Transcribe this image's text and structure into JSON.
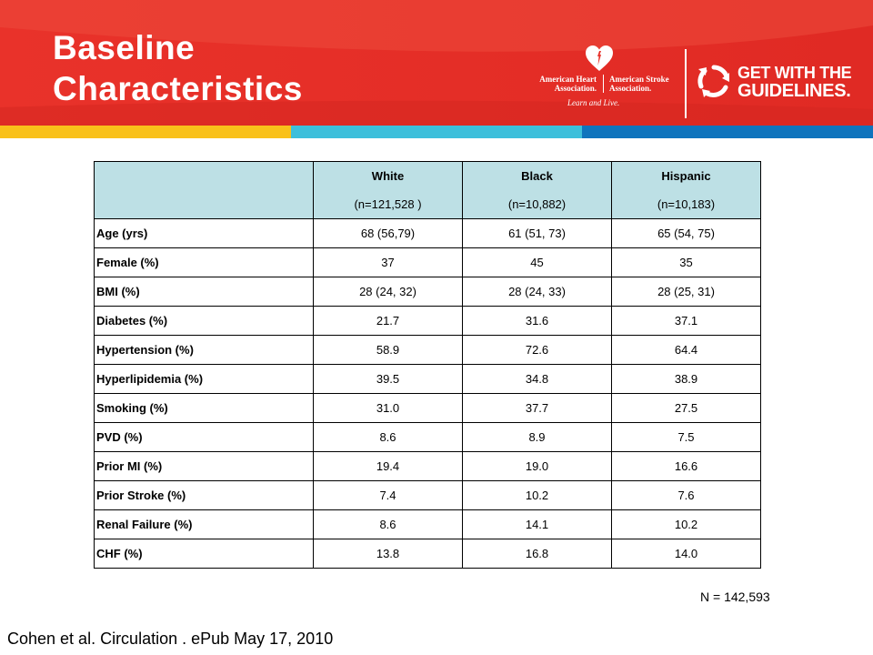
{
  "slide": {
    "title_line1": "Baseline",
    "title_line2": "Characteristics"
  },
  "branding": {
    "aha_left": "American Heart\nAssociation.",
    "aha_right": "American Stroke\nAssociation.",
    "aha_tagline": "Learn and Live.",
    "gwtg_line1": "GET WITH THE",
    "gwtg_line2": "GUIDELINES.",
    "colors": {
      "banner_red": "#e8322a",
      "stripe_yellow": "#f9c11a",
      "stripe_cyan": "#3dbfdb",
      "stripe_blue": "#0f74bd",
      "header_fill": "#bde0e5"
    }
  },
  "table": {
    "groups": [
      {
        "name": "White",
        "n": "(n=121,528  )"
      },
      {
        "name": "Black",
        "n": "(n=10,882)"
      },
      {
        "name": "Hispanic",
        "n": "(n=10,183)"
      }
    ],
    "rows": [
      {
        "label": "Age  (yrs)",
        "values": [
          "68 (56,79)",
          "61 (51, 73)",
          "65 (54, 75)"
        ]
      },
      {
        "label": "Female  (%)",
        "values": [
          "37",
          "45",
          "35"
        ]
      },
      {
        "label": "BMI (%)",
        "values": [
          "28 (24, 32)",
          "28 (24, 33)",
          "28 (25, 31)"
        ]
      },
      {
        "label": "Diabetes  (%)",
        "values": [
          "21.7",
          "31.6",
          "37.1"
        ]
      },
      {
        "label": "Hypertension  (%)",
        "values": [
          "58.9",
          "72.6",
          "64.4"
        ]
      },
      {
        "label": "Hyperlipidemia  (%)",
        "values": [
          "39.5",
          "34.8",
          "38.9"
        ]
      },
      {
        "label": "Smoking  (%)",
        "values": [
          "31.0",
          "37.7",
          "27.5"
        ]
      },
      {
        "label": "PVD (%)",
        "values": [
          "8.6",
          "8.9",
          "7.5"
        ]
      },
      {
        "label": "Prior MI (%)",
        "values": [
          "19.4",
          "19.0",
          "16.6"
        ]
      },
      {
        "label": "Prior  Stroke  (%)",
        "values": [
          "7.4",
          "10.2",
          "7.6"
        ]
      },
      {
        "label": "Renal  Failure  (%)",
        "values": [
          "8.6",
          "14.1",
          "10.2"
        ]
      },
      {
        "label": "CHF  (%)",
        "values": [
          "13.8",
          "16.8",
          "14.0"
        ]
      }
    ]
  },
  "n_total": "N = 142,593",
  "citation": "Cohen et al. Circulation . ePub May 17, 2010"
}
